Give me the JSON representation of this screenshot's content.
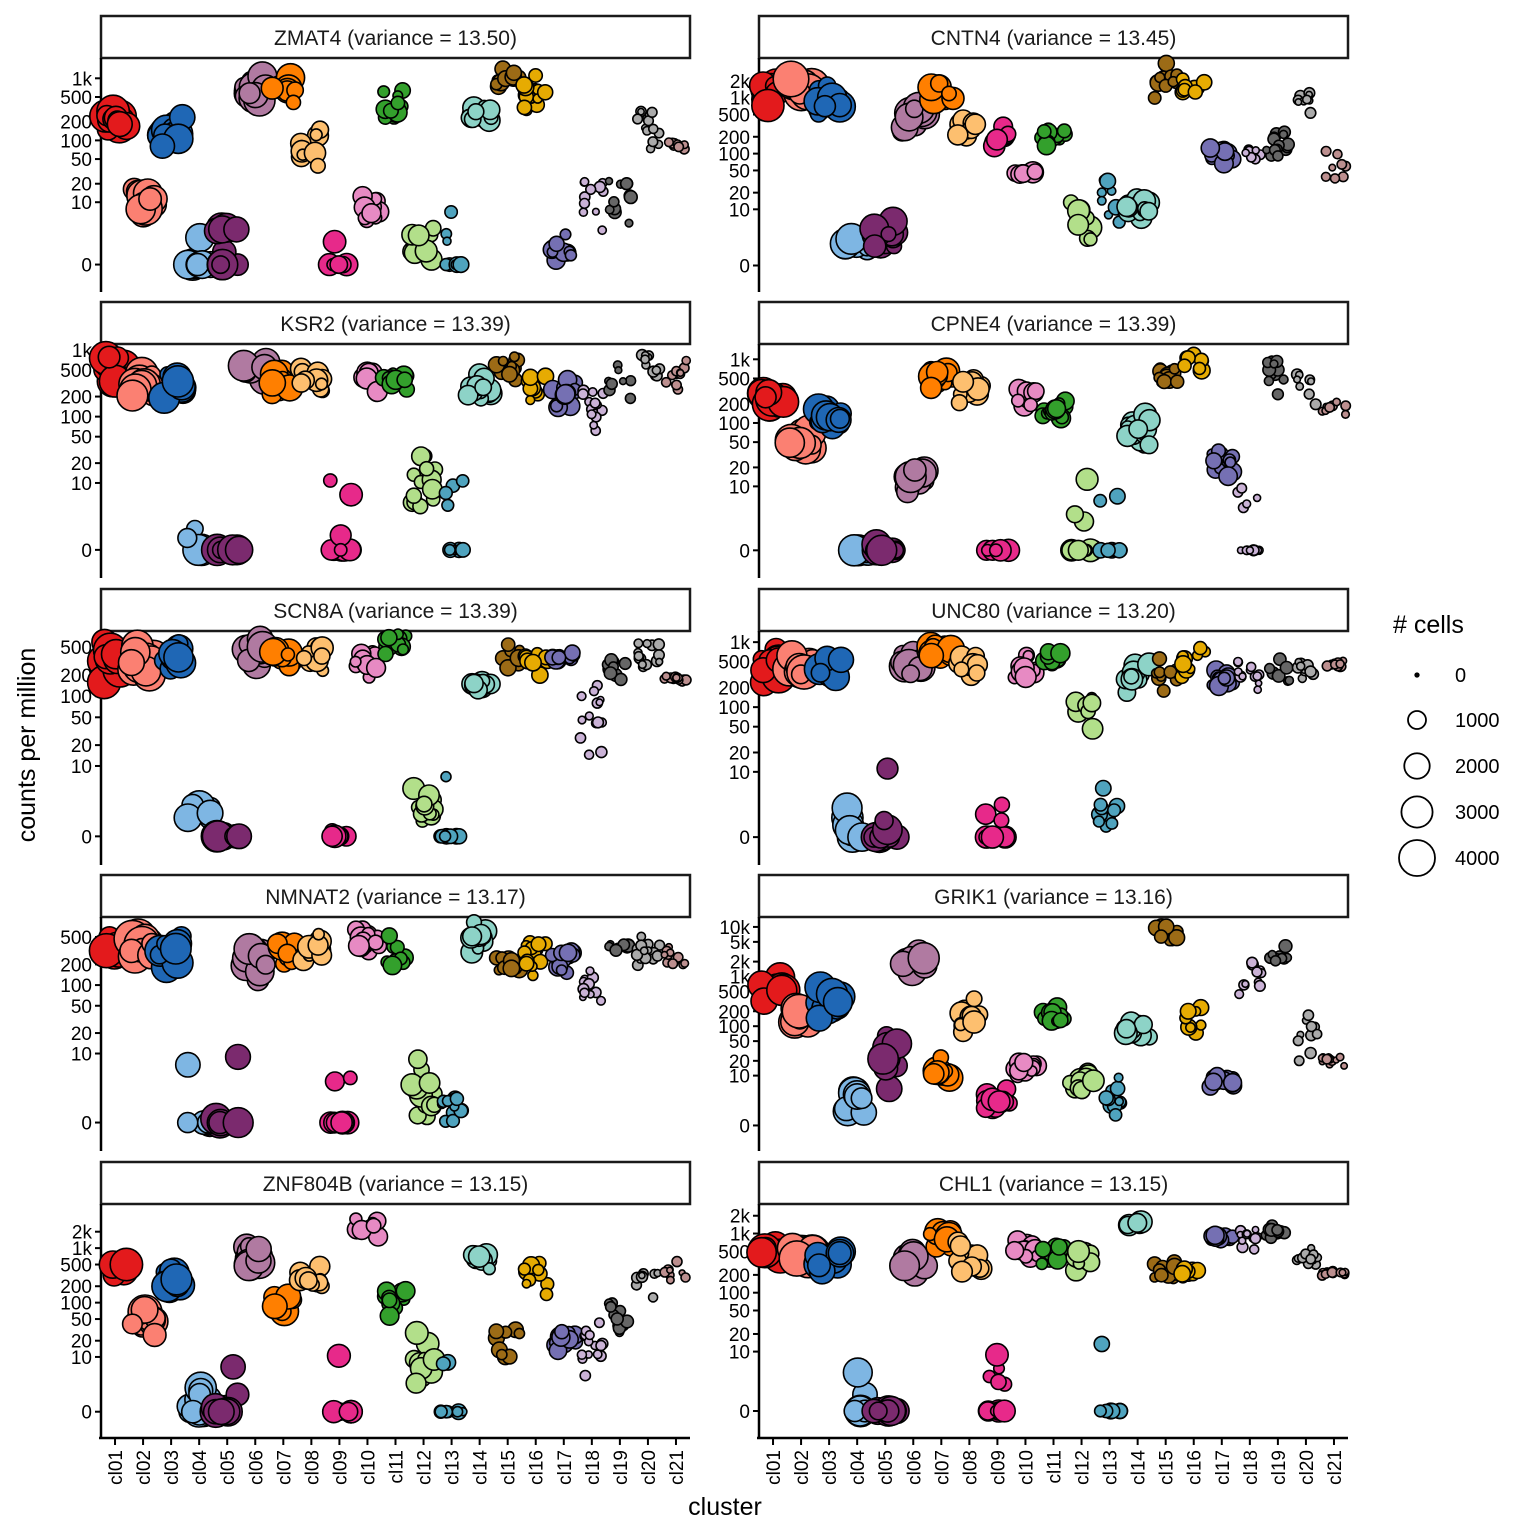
{
  "chart_data": {
    "type": "scatter",
    "subtype": "faceted jittered bubble plot",
    "xlabel": "cluster",
    "ylabel": "counts per million",
    "y_scale": "pseudo-log",
    "categories": [
      "cl01",
      "cl02",
      "cl03",
      "cl04",
      "cl05",
      "cl06",
      "cl07",
      "cl08",
      "cl09",
      "cl10",
      "cl11",
      "cl12",
      "cl13",
      "cl14",
      "cl15",
      "cl16",
      "cl17",
      "cl18",
      "cl19",
      "cl20",
      "cl21"
    ],
    "cluster_colors": {
      "cl01": "#E31A1C",
      "cl02": "#FB8072",
      "cl03": "#1F67B5",
      "cl04": "#7EB6E3",
      "cl05": "#7B2A6E",
      "cl06": "#B07AA1",
      "cl07": "#FF7F00",
      "cl08": "#FDBF6F",
      "cl09": "#E7298A",
      "cl10": "#E78AC3",
      "cl11": "#33A02C",
      "cl12": "#B2DF8A",
      "cl13": "#4FA3BE",
      "cl14": "#8DD3C7",
      "cl15": "#9C6B16",
      "cl16": "#E6AB02",
      "cl17": "#7570B3",
      "cl18": "#CAB2D6",
      "cl19": "#666666",
      "cl20": "#AAAAAA",
      "cl21": "#BC8F8F"
    },
    "legend": {
      "title": "# cells",
      "position": "right",
      "entries": [
        {
          "label": "0",
          "value": 0
        },
        {
          "label": "1000",
          "value": 1000
        },
        {
          "label": "2000",
          "value": 2000
        },
        {
          "label": "3000",
          "value": 3000
        },
        {
          "label": "4000",
          "value": 4000
        }
      ]
    },
    "facets": [
      {
        "gene": "ZMAT4",
        "title": "ZMAT4 (variance = 13.50)",
        "yticks": [
          0,
          10,
          20,
          50,
          100,
          200,
          500,
          1000
        ],
        "yticklabels": [
          "0",
          "10",
          "20",
          "50",
          "100",
          "200",
          "500",
          "1k"
        ],
        "ymax": 1700,
        "medians": [
          220,
          12,
          150,
          0,
          0,
          600,
          550,
          80,
          0,
          8,
          350,
          2,
          0,
          280,
          1000,
          550,
          1,
          15,
          12,
          200,
          85
        ],
        "spread": [
          1,
          1,
          2,
          0,
          1,
          1,
          1,
          2,
          1,
          1,
          1,
          2,
          2,
          1,
          1,
          1,
          1,
          3,
          3,
          2,
          0
        ],
        "sizes": [
          3000,
          3000,
          2500,
          2500,
          2500,
          2500,
          2000,
          1200,
          1200,
          1000,
          800,
          1200,
          500,
          1200,
          600,
          600,
          800,
          200,
          300,
          200,
          150
        ]
      },
      {
        "gene": "CNTN4",
        "title": "CNTN4 (variance = 13.45)",
        "yticks": [
          0,
          10,
          20,
          50,
          100,
          200,
          500,
          1000,
          2000
        ],
        "yticklabels": [
          "0",
          "10",
          "20",
          "50",
          "100",
          "200",
          "500",
          "1k",
          "2k"
        ],
        "ymax": 4000,
        "medians": [
          1200,
          1600,
          700,
          2,
          3,
          450,
          1200,
          300,
          200,
          45,
          200,
          5,
          15,
          10,
          2000,
          1500,
          90,
          100,
          150,
          900,
          50
        ],
        "spread": [
          1,
          1,
          2,
          1,
          1,
          1,
          1,
          1,
          1,
          0,
          1,
          3,
          3,
          1,
          1,
          1,
          1,
          1,
          2,
          1,
          2
        ],
        "sizes": [
          3000,
          3500,
          2500,
          2500,
          2500,
          2500,
          2000,
          1200,
          1200,
          1000,
          800,
          1200,
          500,
          1200,
          600,
          600,
          800,
          200,
          300,
          200,
          150
        ]
      },
      {
        "gene": "KSR2",
        "title": "KSR2 (variance = 13.39)",
        "yticks": [
          0,
          10,
          20,
          50,
          100,
          200,
          500,
          1000
        ],
        "yticklabels": [
          "0",
          "10",
          "20",
          "50",
          "100",
          "200",
          "500",
          "1k"
        ],
        "ymax": 1000,
        "medians": [
          550,
          300,
          330,
          0,
          0,
          550,
          320,
          400,
          0,
          380,
          380,
          10,
          0,
          260,
          580,
          260,
          220,
          150,
          360,
          650,
          400
        ],
        "spread": [
          1,
          1,
          1,
          0,
          1,
          1,
          1,
          1,
          1,
          1,
          1,
          3,
          3,
          1,
          1,
          1,
          1,
          2,
          1,
          1,
          1
        ],
        "sizes": [
          3000,
          3000,
          2500,
          2500,
          2500,
          2500,
          2000,
          1200,
          1200,
          1000,
          800,
          1200,
          500,
          1200,
          600,
          600,
          800,
          200,
          300,
          200,
          150
        ]
      },
      {
        "gene": "CPNE4",
        "title": "CPNE4 (variance = 13.39)",
        "yticks": [
          0,
          10,
          20,
          50,
          100,
          200,
          500,
          1000
        ],
        "yticklabels": [
          "0",
          "10",
          "20",
          "50",
          "100",
          "200",
          "500",
          "1k"
        ],
        "ymax": 1400,
        "medians": [
          230,
          45,
          110,
          0,
          0,
          13,
          600,
          350,
          0,
          300,
          160,
          0,
          0,
          80,
          550,
          980,
          22,
          0,
          550,
          400,
          180
        ],
        "spread": [
          1,
          1,
          1,
          0,
          1,
          1,
          1,
          1,
          1,
          1,
          1,
          2,
          2,
          1,
          1,
          1,
          1,
          2,
          2,
          2,
          1
        ],
        "sizes": [
          3000,
          3000,
          2500,
          2500,
          2500,
          2500,
          2000,
          1200,
          1200,
          1000,
          800,
          1200,
          500,
          1200,
          600,
          600,
          800,
          200,
          300,
          200,
          150
        ]
      },
      {
        "gene": "SCN8A",
        "title": "SCN8A (variance = 13.39)",
        "yticks": [
          0,
          10,
          20,
          50,
          100,
          200,
          500
        ],
        "yticklabels": [
          "0",
          "10",
          "20",
          "50",
          "100",
          "200",
          "500"
        ],
        "ymax": 700,
        "medians": [
          320,
          300,
          330,
          2,
          0,
          450,
          400,
          380,
          0,
          300,
          520,
          2,
          0,
          145,
          370,
          350,
          350,
          60,
          240,
          400,
          180
        ],
        "spread": [
          1,
          1,
          1,
          1,
          1,
          1,
          1,
          1,
          1,
          1,
          1,
          2,
          2,
          0,
          1,
          1,
          0,
          3,
          1,
          1,
          0
        ],
        "sizes": [
          3000,
          3500,
          2500,
          2500,
          2500,
          2500,
          2000,
          1200,
          1200,
          1000,
          800,
          1200,
          500,
          1200,
          600,
          600,
          800,
          200,
          300,
          200,
          150
        ]
      },
      {
        "gene": "UNC80",
        "title": "UNC80 (variance = 13.20)",
        "yticks": [
          0,
          10,
          20,
          50,
          100,
          200,
          500,
          1000
        ],
        "yticklabels": [
          "0",
          "10",
          "20",
          "50",
          "100",
          "200",
          "500",
          "1k"
        ],
        "ymax": 1200,
        "medians": [
          420,
          470,
          380,
          0,
          0,
          450,
          750,
          420,
          0,
          400,
          550,
          80,
          2,
          350,
          300,
          500,
          290,
          400,
          360,
          350,
          460
        ],
        "spread": [
          1,
          1,
          1,
          0,
          1,
          1,
          1,
          1,
          1,
          1,
          1,
          2,
          2,
          1,
          1,
          1,
          1,
          2,
          1,
          1,
          0
        ],
        "sizes": [
          3000,
          3000,
          2500,
          2500,
          2500,
          2500,
          2000,
          1200,
          1200,
          1000,
          800,
          1200,
          500,
          1200,
          600,
          600,
          800,
          200,
          300,
          200,
          150
        ]
      },
      {
        "gene": "NMNAT2",
        "title": "NMNAT2 (variance = 13.17)",
        "yticks": [
          0,
          10,
          20,
          50,
          100,
          200,
          500
        ],
        "yticklabels": [
          "0",
          "10",
          "20",
          "50",
          "100",
          "200",
          "500"
        ],
        "ymax": 800,
        "medians": [
          380,
          450,
          290,
          0,
          0,
          240,
          290,
          320,
          0,
          400,
          250,
          2,
          1,
          500,
          200,
          300,
          240,
          100,
          370,
          360,
          300
        ],
        "spread": [
          1,
          1,
          1,
          1,
          1,
          1,
          1,
          1,
          1,
          1,
          1,
          3,
          3,
          1,
          1,
          1,
          1,
          2,
          0,
          1,
          1
        ],
        "sizes": [
          3000,
          3500,
          2500,
          2500,
          2500,
          2500,
          2000,
          1200,
          1200,
          1000,
          800,
          1200,
          500,
          1200,
          600,
          600,
          800,
          200,
          300,
          200,
          150
        ]
      },
      {
        "gene": "GRIK1",
        "title": "GRIK1 (variance = 13.16)",
        "yticks": [
          0,
          10,
          20,
          50,
          100,
          200,
          500,
          1000,
          2000,
          5000,
          10000
        ],
        "yticklabels": [
          "0",
          "10",
          "20",
          "50",
          "100",
          "200",
          "500",
          "1k",
          "2k",
          "5k",
          "10k"
        ],
        "ymax": 12000,
        "medians": [
          700,
          170,
          300,
          3,
          20,
          1800,
          12,
          150,
          3,
          15,
          160,
          8,
          3,
          90,
          7000,
          100,
          8,
          900,
          2500,
          60,
          20
        ],
        "spread": [
          2,
          1,
          2,
          1,
          3,
          1,
          1,
          2,
          1,
          1,
          1,
          2,
          2,
          1,
          1,
          3,
          1,
          2,
          1,
          2,
          1
        ],
        "sizes": [
          3000,
          3000,
          2500,
          2500,
          2500,
          2500,
          2000,
          1200,
          1200,
          1000,
          800,
          1200,
          500,
          1200,
          600,
          600,
          800,
          200,
          300,
          200,
          150
        ]
      },
      {
        "gene": "ZNF804B",
        "title": "ZNF804B (variance = 13.15)",
        "yticks": [
          0,
          10,
          20,
          50,
          100,
          200,
          500,
          1000,
          2000
        ],
        "yticklabels": [
          "0",
          "10",
          "20",
          "50",
          "100",
          "200",
          "500",
          "1k",
          "2k"
        ],
        "ymax": 5000,
        "medians": [
          400,
          45,
          250,
          0,
          0,
          700,
          110,
          250,
          0,
          2500,
          110,
          8,
          0,
          600,
          15,
          250,
          20,
          15,
          60,
          250,
          350
        ],
        "spread": [
          1,
          1,
          2,
          0,
          1,
          1,
          1,
          1,
          1,
          1,
          1,
          3,
          2,
          1,
          3,
          2,
          1,
          3,
          2,
          2,
          1
        ],
        "sizes": [
          3000,
          3000,
          2500,
          2500,
          2500,
          2500,
          2000,
          1200,
          1200,
          1000,
          800,
          1200,
          500,
          1200,
          600,
          600,
          800,
          200,
          300,
          200,
          150
        ]
      },
      {
        "gene": "CHL1",
        "title": "CHL1 (variance = 13.15)",
        "yticks": [
          0,
          10,
          20,
          50,
          100,
          200,
          500,
          1000,
          2000
        ],
        "yticklabels": [
          "0",
          "10",
          "20",
          "50",
          "100",
          "200",
          "500",
          "1k",
          "2k"
        ],
        "ymax": 2500,
        "medians": [
          450,
          480,
          400,
          0,
          0,
          320,
          900,
          400,
          0,
          500,
          500,
          350,
          0,
          1500,
          250,
          250,
          850,
          900,
          1000,
          400,
          220
        ],
        "spread": [
          1,
          1,
          1,
          1,
          1,
          1,
          1,
          1,
          1,
          1,
          1,
          1,
          2,
          0,
          1,
          1,
          0,
          1,
          1,
          1,
          0
        ],
        "sizes": [
          3000,
          3500,
          2500,
          2500,
          2500,
          2500,
          2000,
          1200,
          1200,
          1000,
          800,
          1200,
          500,
          1200,
          600,
          600,
          800,
          200,
          300,
          200,
          150
        ]
      }
    ]
  }
}
